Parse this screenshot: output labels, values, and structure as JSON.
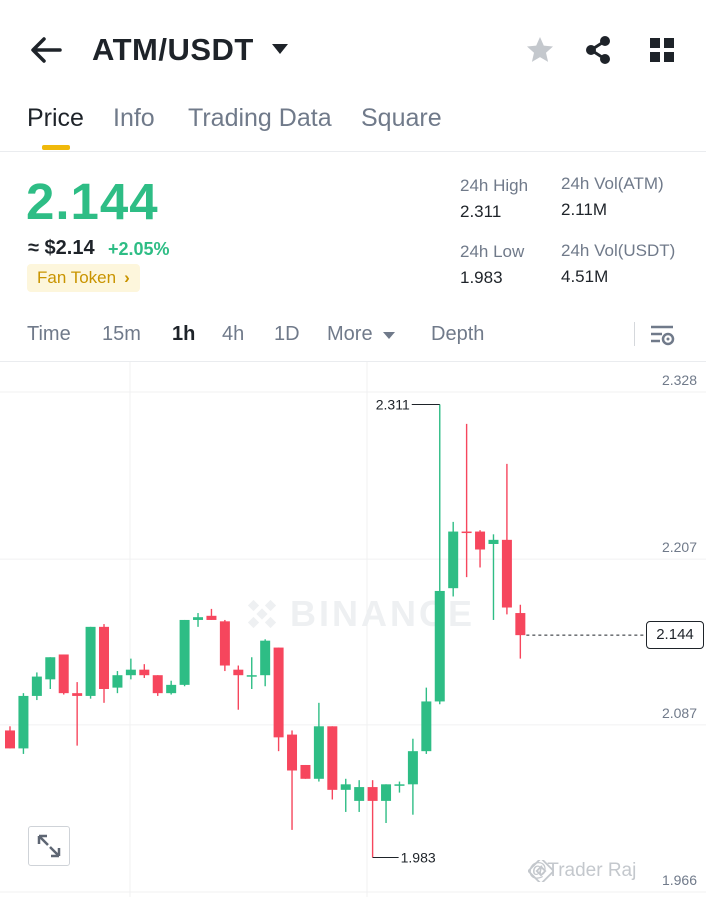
{
  "header": {
    "title": "ATM/USDT",
    "icons": [
      "back-arrow-icon",
      "caret-down-icon",
      "star-icon",
      "share-icon",
      "grid-icon"
    ]
  },
  "tabs": [
    {
      "label": "Price",
      "active": true
    },
    {
      "label": "Info",
      "active": false
    },
    {
      "label": "Trading Data",
      "active": false
    },
    {
      "label": "Square",
      "active": false
    }
  ],
  "price": {
    "last": "2.144",
    "usd": "≈ $2.14",
    "change": "+2.05%",
    "tag": "Fan Token",
    "tag_chevron": "›"
  },
  "stats": {
    "high_label": "24h High",
    "high_value": "2.311",
    "low_label": "24h Low",
    "low_value": "1.983",
    "vol_base_label": "24h Vol(ATM)",
    "vol_base_value": "2.11M",
    "vol_quote_label": "24h Vol(USDT)",
    "vol_quote_value": "4.51M"
  },
  "intervals": [
    {
      "label": "Time",
      "active": false
    },
    {
      "label": "15m",
      "active": false
    },
    {
      "label": "1h",
      "active": true
    },
    {
      "label": "4h",
      "active": false
    },
    {
      "label": "1D",
      "active": false
    },
    {
      "label": "More",
      "active": false
    },
    {
      "label": "Depth",
      "active": false
    }
  ],
  "chart_data": {
    "type": "candlestick",
    "interval": "1h",
    "y_ticks": [
      "2.328",
      "2.207",
      "2.087",
      "1.966"
    ],
    "ylim": [
      1.966,
      2.328
    ],
    "current_price": "2.144",
    "max_annotation": "2.311",
    "min_annotation": "1.983",
    "watermark": "BINANCE",
    "colors": {
      "up": "#2ebd85",
      "down": "#f6465d"
    },
    "candles": [
      {
        "o": 2.075,
        "h": 2.078,
        "l": 2.062,
        "c": 2.062
      },
      {
        "o": 2.062,
        "h": 2.102,
        "l": 2.058,
        "c": 2.1
      },
      {
        "o": 2.1,
        "h": 2.117,
        "l": 2.097,
        "c": 2.114
      },
      {
        "o": 2.112,
        "h": 2.128,
        "l": 2.105,
        "c": 2.128
      },
      {
        "o": 2.13,
        "h": 2.13,
        "l": 2.101,
        "c": 2.102
      },
      {
        "o": 2.102,
        "h": 2.11,
        "l": 2.064,
        "c": 2.1
      },
      {
        "o": 2.1,
        "h": 2.15,
        "l": 2.098,
        "c": 2.15
      },
      {
        "o": 2.15,
        "h": 2.152,
        "l": 2.095,
        "c": 2.105
      },
      {
        "o": 2.106,
        "h": 2.118,
        "l": 2.102,
        "c": 2.115
      },
      {
        "o": 2.115,
        "h": 2.127,
        "l": 2.112,
        "c": 2.119
      },
      {
        "o": 2.119,
        "h": 2.123,
        "l": 2.113,
        "c": 2.115
      },
      {
        "o": 2.115,
        "h": 2.115,
        "l": 2.1,
        "c": 2.102
      },
      {
        "o": 2.102,
        "h": 2.111,
        "l": 2.101,
        "c": 2.108
      },
      {
        "o": 2.108,
        "h": 2.155,
        "l": 2.107,
        "c": 2.155
      },
      {
        "o": 2.155,
        "h": 2.16,
        "l": 2.15,
        "c": 2.157
      },
      {
        "o": 2.158,
        "h": 2.163,
        "l": 2.155,
        "c": 2.155
      },
      {
        "o": 2.154,
        "h": 2.155,
        "l": 2.118,
        "c": 2.122
      },
      {
        "o": 2.119,
        "h": 2.122,
        "l": 2.09,
        "c": 2.115
      },
      {
        "o": 2.115,
        "h": 2.128,
        "l": 2.105,
        "c": 2.115
      },
      {
        "o": 2.115,
        "h": 2.141,
        "l": 2.107,
        "c": 2.14
      },
      {
        "o": 2.135,
        "h": 2.135,
        "l": 2.06,
        "c": 2.07
      },
      {
        "o": 2.072,
        "h": 2.075,
        "l": 2.003,
        "c": 2.046
      },
      {
        "o": 2.05,
        "h": 2.05,
        "l": 2.04,
        "c": 2.04
      },
      {
        "o": 2.04,
        "h": 2.095,
        "l": 2.038,
        "c": 2.078
      },
      {
        "o": 2.078,
        "h": 2.078,
        "l": 2.025,
        "c": 2.032
      },
      {
        "o": 2.032,
        "h": 2.04,
        "l": 2.016,
        "c": 2.036
      },
      {
        "o": 2.024,
        "h": 2.039,
        "l": 2.016,
        "c": 2.034
      },
      {
        "o": 2.034,
        "h": 2.039,
        "l": 1.983,
        "c": 2.024
      },
      {
        "o": 2.024,
        "h": 2.036,
        "l": 2.008,
        "c": 2.036
      },
      {
        "o": 2.036,
        "h": 2.038,
        "l": 2.03,
        "c": 2.036
      },
      {
        "o": 2.036,
        "h": 2.069,
        "l": 2.014,
        "c": 2.06
      },
      {
        "o": 2.06,
        "h": 2.106,
        "l": 2.058,
        "c": 2.096
      },
      {
        "o": 2.096,
        "h": 2.311,
        "l": 2.094,
        "c": 2.176
      },
      {
        "o": 2.178,
        "h": 2.226,
        "l": 2.172,
        "c": 2.219
      },
      {
        "o": 2.219,
        "h": 2.297,
        "l": 2.186,
        "c": 2.218
      },
      {
        "o": 2.219,
        "h": 2.22,
        "l": 2.193,
        "c": 2.206
      },
      {
        "o": 2.21,
        "h": 2.217,
        "l": 2.155,
        "c": 2.213
      },
      {
        "o": 2.213,
        "h": 2.268,
        "l": 2.159,
        "c": 2.164
      },
      {
        "o": 2.16,
        "h": 2.166,
        "l": 2.127,
        "c": 2.144
      }
    ]
  },
  "credit": "@Trader Raj"
}
